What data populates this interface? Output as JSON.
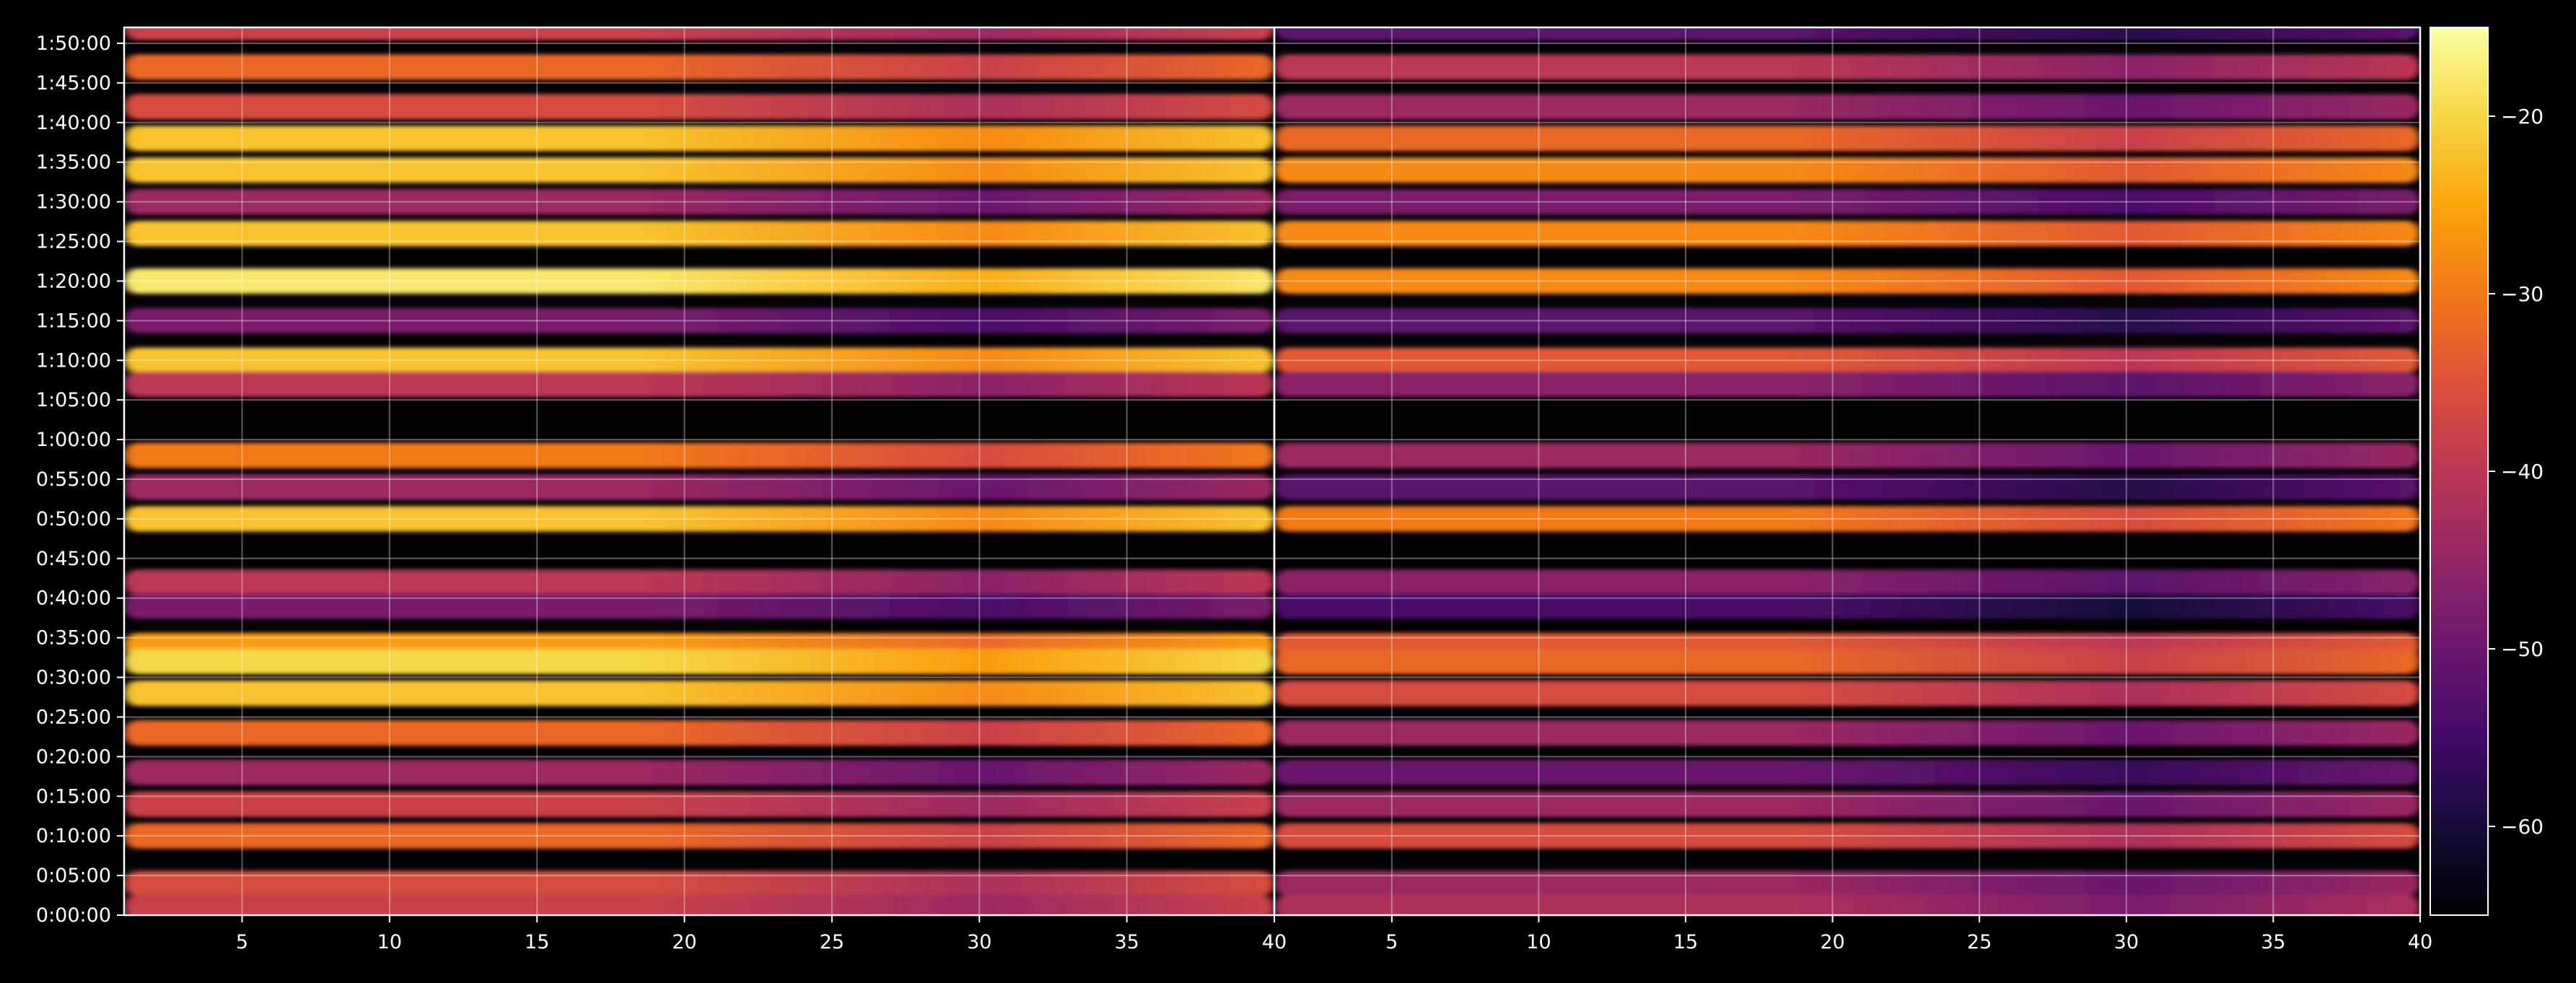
{
  "chart_data": {
    "type": "heatmap",
    "title": "",
    "panels": [
      {
        "name": "",
        "x_ticks": [
          "5",
          "10",
          "15",
          "20",
          "25",
          "30",
          "35",
          "40"
        ],
        "xlim": [
          1,
          40
        ]
      },
      {
        "name": "",
        "x_ticks": [
          "5",
          "10",
          "15",
          "20",
          "25",
          "30",
          "35",
          "40"
        ],
        "xlim": [
          1,
          40
        ]
      }
    ],
    "y_ticks": [
      "0:00:00",
      "0:05:00",
      "0:10:00",
      "0:15:00",
      "0:20:00",
      "0:25:00",
      "0:30:00",
      "0:35:00",
      "0:40:00",
      "0:45:00",
      "0:50:00",
      "0:55:00",
      "1:00:00",
      "1:05:00",
      "1:10:00",
      "1:15:00",
      "1:20:00",
      "1:25:00",
      "1:30:00",
      "1:35:00",
      "1:40:00",
      "1:45:00",
      "1:50:00"
    ],
    "y_range_minutes": [
      0,
      112
    ],
    "grid": true,
    "colormap": "inferno",
    "colorbar": {
      "min": -65,
      "max": -15,
      "ticks": [
        "−20",
        "−30",
        "−40",
        "−50",
        "−60"
      ],
      "tick_values": [
        -20,
        -30,
        -40,
        -50,
        -60
      ]
    },
    "bands": [
      {
        "t": 112,
        "a": -38,
        "b": -52
      },
      {
        "t": 107,
        "a": -32,
        "b": -40
      },
      {
        "t": 102,
        "a": -36,
        "b": -44
      },
      {
        "t": 98,
        "a": -22,
        "b": -32
      },
      {
        "t": 94,
        "a": -22,
        "b": -28
      },
      {
        "t": 90,
        "a": -44,
        "b": -48
      },
      {
        "t": 86,
        "a": -22,
        "b": -28
      },
      {
        "t": 80,
        "a": -18,
        "b": -28
      },
      {
        "t": 75,
        "a": -48,
        "b": -52
      },
      {
        "t": 70,
        "a": -22,
        "b": -34
      },
      {
        "t": 67,
        "a": -40,
        "b": -46
      },
      {
        "t": 58,
        "a": -30,
        "b": -44
      },
      {
        "t": 54,
        "a": -44,
        "b": -52
      },
      {
        "t": 50,
        "a": -22,
        "b": -30
      },
      {
        "t": 42,
        "a": -40,
        "b": -46
      },
      {
        "t": 39,
        "a": -48,
        "b": -54
      },
      {
        "t": 34,
        "a": -26,
        "b": -34
      },
      {
        "t": 32,
        "a": -20,
        "b": -32
      },
      {
        "t": 28,
        "a": -22,
        "b": -36
      },
      {
        "t": 23,
        "a": -32,
        "b": -44
      },
      {
        "t": 18,
        "a": -44,
        "b": -50
      },
      {
        "t": 14,
        "a": -38,
        "b": -44
      },
      {
        "t": 10,
        "a": -32,
        "b": -36
      },
      {
        "t": 4,
        "a": -36,
        "b": -44
      },
      {
        "t": 1,
        "a": -38,
        "b": -42
      }
    ]
  }
}
